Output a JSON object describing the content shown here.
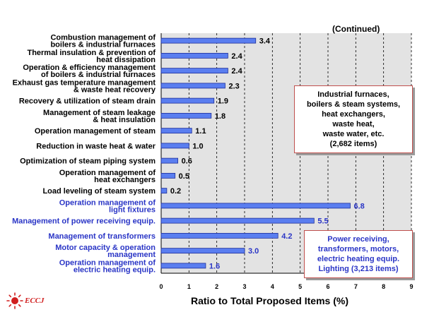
{
  "continued_label": "(Continued)",
  "callouts": {
    "furnaces": [
      "Industrial furnaces,",
      "boilers & steam systems,",
      "heat exchangers,",
      "waste heat,",
      "waste water, etc.",
      "(2,682 items)"
    ],
    "electrical": [
      "Power receiving,",
      "transformers, motors,",
      "electric heating equip.",
      "Lighting  (3,213 items)"
    ]
  },
  "logo_text": "ECCJ",
  "colors": {
    "bar_fill": "#5a7ef0",
    "bar_stroke": "#1f2f9a",
    "dark_text": "#000000",
    "blue_text": "#2a35c6",
    "panel_bg": "#e3e3e3",
    "callout_border": "#c0504d",
    "logo_red": "#d01f1f"
  },
  "chart_data": {
    "type": "bar",
    "orientation": "horizontal",
    "xlabel": "Ratio to Total Proposed Items (%)",
    "xlim": [
      0,
      9
    ],
    "xticks": [
      0,
      1,
      2,
      3,
      4,
      5,
      6,
      7,
      8,
      9
    ],
    "grid": "vertical dashed",
    "categories": [
      [
        "Combustion management of",
        "boilers & industrial furnaces"
      ],
      [
        "Thermal insulation & prevention of",
        "heat dissipation"
      ],
      [
        "Operation & efficiency management",
        "of boilers & industrial furnaces"
      ],
      [
        "Exhaust gas temperature management",
        "& waste heat recovery"
      ],
      [
        "Recovery & utilization of steam drain"
      ],
      [
        "Management of steam leakage",
        "& heat insulation"
      ],
      [
        "Operation management of steam"
      ],
      [
        "Reduction in waste heat & water"
      ],
      [
        "Optimization of steam piping system"
      ],
      [
        "Operation management of",
        "heat exchangers"
      ],
      [
        "Load leveling of  steam system"
      ],
      [
        "Operation management of",
        "light fixtures"
      ],
      [
        "Management of power receiving equip."
      ],
      [
        "Management of transformers"
      ],
      [
        "Motor capacity & operation",
        "management"
      ],
      [
        "Operation management of",
        "electric heating equip."
      ]
    ],
    "values": [
      3.4,
      2.4,
      2.4,
      2.3,
      1.9,
      1.8,
      1.1,
      1.0,
      0.6,
      0.5,
      0.2,
      6.8,
      5.5,
      4.2,
      3.0,
      1.6
    ],
    "value_labels": [
      "3.4",
      "2.4",
      "2.4",
      "2.3",
      "1.9",
      "1.8",
      "1.1",
      "1.0",
      "0.6",
      "0.5",
      "0.2",
      "6.8",
      "5.5",
      "4.2",
      "3.0",
      "1.6"
    ],
    "groups": [
      "furnaces",
      "furnaces",
      "furnaces",
      "furnaces",
      "furnaces",
      "furnaces",
      "furnaces",
      "furnaces",
      "furnaces",
      "furnaces",
      "furnaces",
      "electrical",
      "electrical",
      "electrical",
      "electrical",
      "electrical"
    ],
    "group_colors": {
      "furnaces": "#000000",
      "electrical": "#2a35c6"
    }
  }
}
